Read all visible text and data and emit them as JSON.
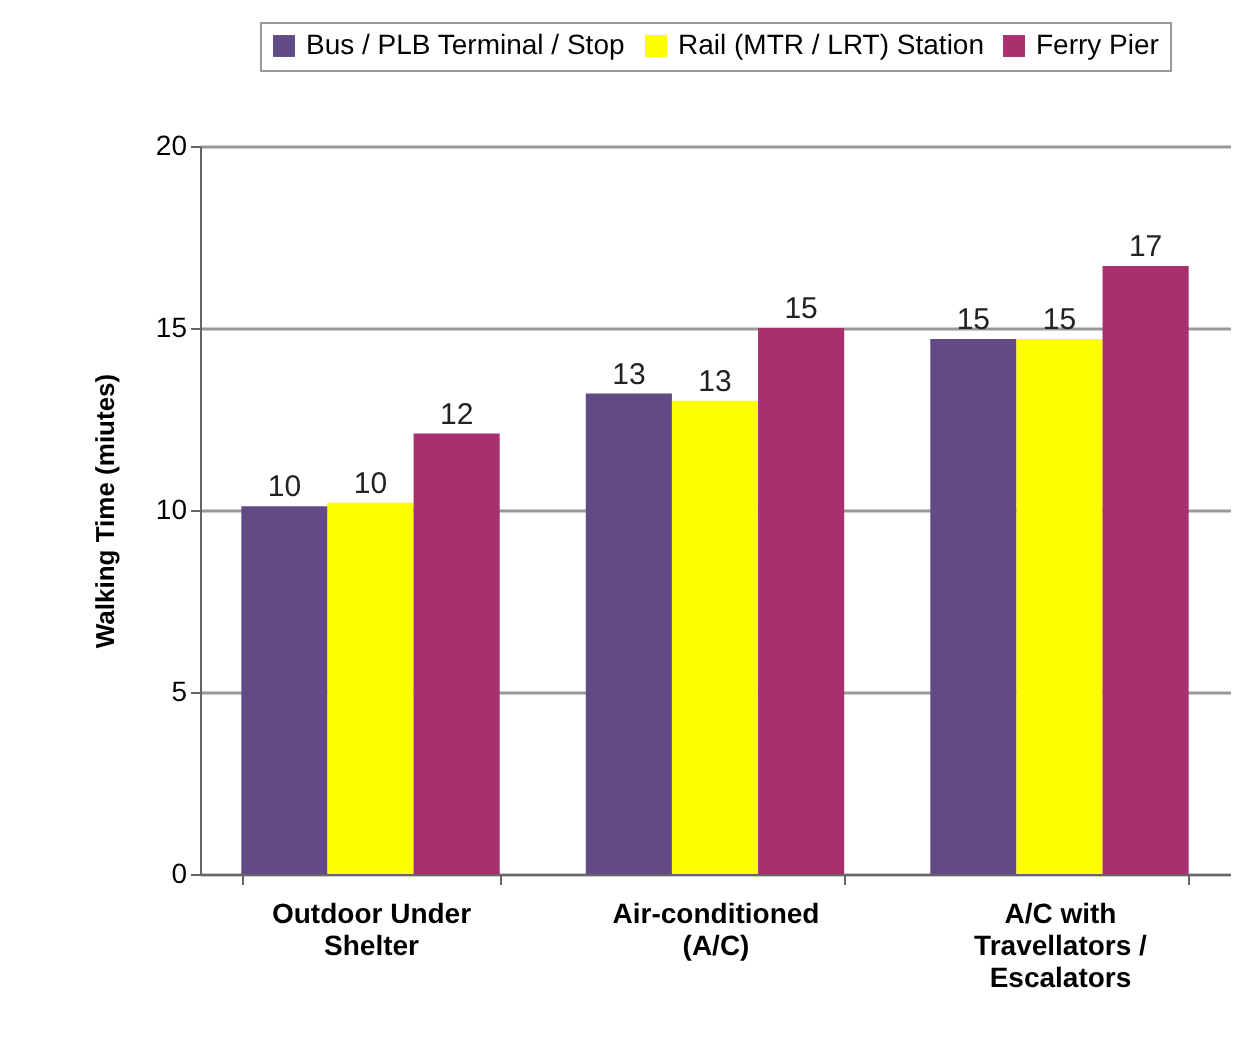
{
  "chart_data": {
    "type": "bar",
    "ylabel": "Walking Time (miutes)",
    "categories": [
      "Outdoor Under Shelter",
      "Air-conditioned (A/C)",
      "A/C with Travellators / Escalators"
    ],
    "series": [
      {
        "name": "Bus / PLB Terminal / Stop",
        "color": "#624a86",
        "values": [
          10.1,
          13.2,
          14.7
        ],
        "value_labels": [
          "10",
          "13",
          "15"
        ]
      },
      {
        "name": "Rail (MTR / LRT) Station",
        "color": "#ffff00",
        "values": [
          10.2,
          13.0,
          14.7
        ],
        "value_labels": [
          "10",
          "13",
          "15"
        ]
      },
      {
        "name": "Ferry Pier",
        "color": "#a8306e",
        "values": [
          12.1,
          15.0,
          16.7
        ],
        "value_labels": [
          "12",
          "15",
          "17"
        ]
      }
    ],
    "ylim": [
      0,
      20
    ],
    "yticks": [
      0,
      5,
      10,
      15,
      20
    ],
    "grid": "y",
    "legend": "top"
  }
}
